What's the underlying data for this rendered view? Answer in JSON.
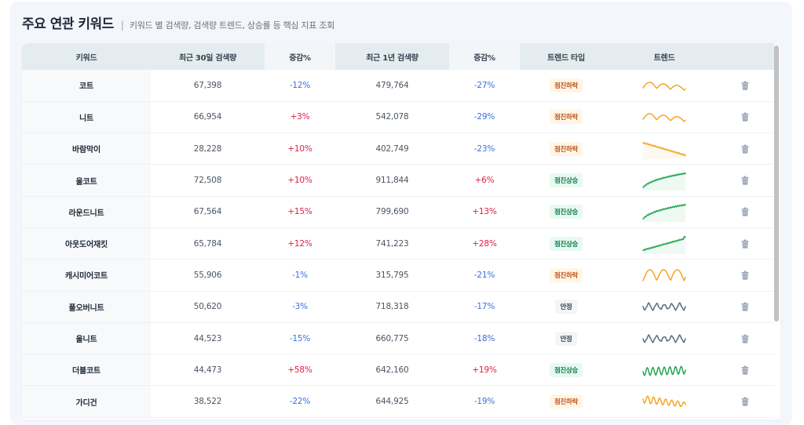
{
  "header": {
    "title": "주요 연관 키워드",
    "separator": "|",
    "subtitle": "키워드 별 검색량, 검색량 트렌드, 상승률 등 핵심 지표 조회"
  },
  "table": {
    "columns": [
      "키워드",
      "최근 30일 검색량",
      "증감%",
      "최근 1년 검색량",
      "증감%",
      "트렌드 타입",
      "트렌드",
      ""
    ],
    "rows": [
      {
        "keyword": "코트",
        "vol30": "67,398",
        "chg30": "-12%",
        "vol1y": "479,764",
        "chg1y": "-27%",
        "trend_type": "점진하락",
        "trend": "down-wave"
      },
      {
        "keyword": "니트",
        "vol30": "66,954",
        "chg30": "+3%",
        "vol1y": "542,078",
        "chg1y": "-29%",
        "trend_type": "점진하락",
        "trend": "down-wave"
      },
      {
        "keyword": "바람막이",
        "vol30": "28,228",
        "chg30": "+10%",
        "vol1y": "402,749",
        "chg1y": "-23%",
        "trend_type": "점진하락",
        "trend": "down-linear"
      },
      {
        "keyword": "울코트",
        "vol30": "72,508",
        "chg30": "+10%",
        "vol1y": "911,844",
        "chg1y": "+6%",
        "trend_type": "점진상승",
        "trend": "up-log"
      },
      {
        "keyword": "라운드니트",
        "vol30": "67,564",
        "chg30": "+15%",
        "vol1y": "799,690",
        "chg1y": "+13%",
        "trend_type": "점진상승",
        "trend": "up-log"
      },
      {
        "keyword": "아웃도어재킷",
        "vol30": "65,784",
        "chg30": "+12%",
        "vol1y": "741,223",
        "chg1y": "+28%",
        "trend_type": "점진상승",
        "trend": "up-linear"
      },
      {
        "keyword": "캐시미어코트",
        "vol30": "55,906",
        "chg30": "-1%",
        "vol1y": "315,795",
        "chg1y": "-21%",
        "trend_type": "점진하락",
        "trend": "down-wave-flat"
      },
      {
        "keyword": "풀오버니트",
        "vol30": "50,620",
        "chg30": "-3%",
        "vol1y": "718,318",
        "chg1y": "-17%",
        "trend_type": "안정",
        "trend": "stable-zigzag"
      },
      {
        "keyword": "울니트",
        "vol30": "44,523",
        "chg30": "-15%",
        "vol1y": "660,775",
        "chg1y": "-18%",
        "trend_type": "안정",
        "trend": "stable-zigzag"
      },
      {
        "keyword": "더블코트",
        "vol30": "44,473",
        "chg30": "+58%",
        "vol1y": "642,160",
        "chg1y": "+19%",
        "trend_type": "점진상승",
        "trend": "up-zigzag"
      },
      {
        "keyword": "가디건",
        "vol30": "38,522",
        "chg30": "-22%",
        "vol1y": "644,925",
        "chg1y": "-19%",
        "trend_type": "점진하락",
        "trend": "down-zigzag"
      }
    ],
    "row_action_icon": "trash-icon"
  },
  "colors": {
    "negative": "#3b6fe0",
    "positive": "#e11d48",
    "trend_down": "#f5a524",
    "trend_up": "#22a650",
    "trend_stable": "#5b6b80"
  }
}
